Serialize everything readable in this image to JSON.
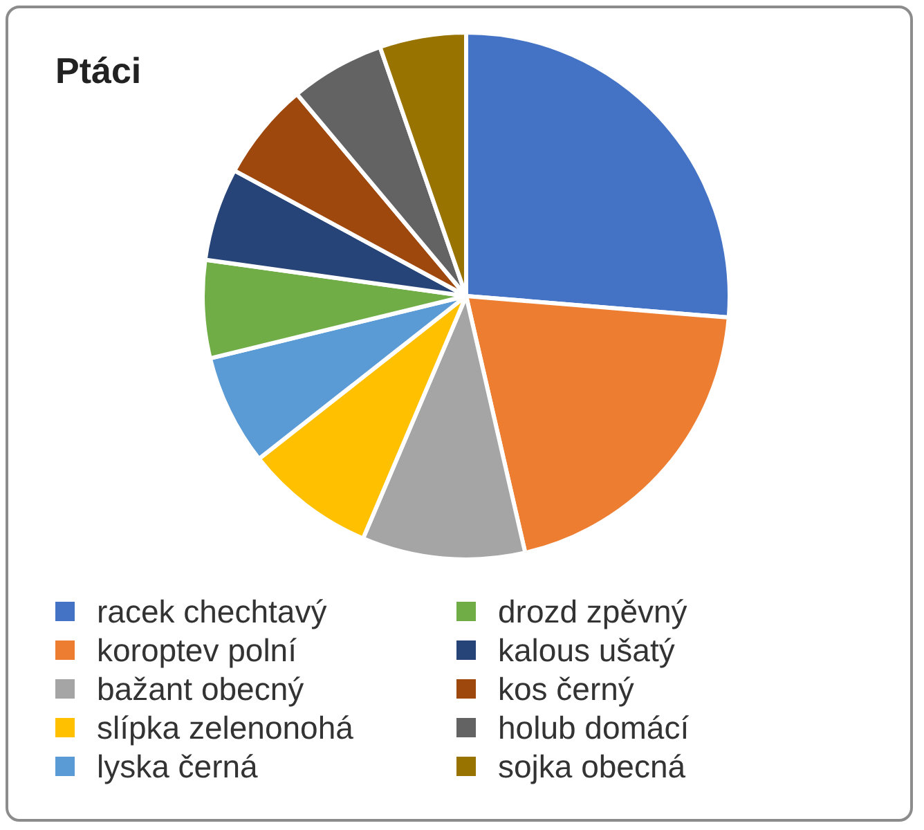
{
  "chart_data": {
    "type": "pie",
    "title": "Ptáci",
    "categories": [
      "racek chechtavý",
      "koroptev polní",
      "bažant obecný",
      "slípka zelenonohá",
      "lyska černá",
      "drozd zpěvný",
      "kalous ušatý",
      "kos černý",
      "holub domácí",
      "sojka obecná"
    ],
    "values": [
      26.3,
      20.1,
      10,
      8,
      6.8,
      6,
      5.7,
      6,
      5.8,
      5.3
    ],
    "colors": [
      "#4472c4",
      "#ed7d31",
      "#a5a5a5",
      "#ffc000",
      "#5b9bd5",
      "#70ad47",
      "#264478",
      "#9e480e",
      "#636363",
      "#997300"
    ],
    "legend": "bottom"
  }
}
